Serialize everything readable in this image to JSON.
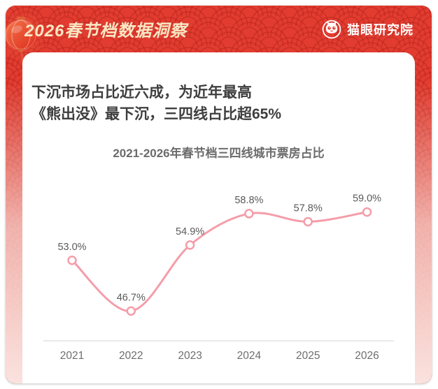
{
  "header": {
    "title": "2026春节档数据洞察",
    "logo": {
      "text": "猫眼研究院",
      "icon": "maoyan-cat-icon"
    }
  },
  "headline": {
    "line1": "下沉市场占比近六成，为近年最高",
    "line2": "《熊出没》最下沉，三四线占比超65%"
  },
  "chart_data": {
    "type": "line",
    "title": "2021-2026年春节档三四线城市票房占比",
    "categories": [
      "2021",
      "2022",
      "2023",
      "2024",
      "2025",
      "2026"
    ],
    "values": [
      53.0,
      46.7,
      54.9,
      58.8,
      57.8,
      59.0
    ],
    "value_labels": [
      "53.0%",
      "46.7%",
      "54.9%",
      "58.8%",
      "57.8%",
      "59.0%"
    ],
    "ylim": [
      43,
      64
    ],
    "grid": false,
    "legend": "none",
    "line_color": "#F49DA9",
    "marker": "open-circle"
  },
  "colors": {
    "background_red": "#E23C30",
    "background_fade_pink": "#F8DEDA",
    "header_title_text": "#F8E7C4",
    "logo_text": "#FFFFFF",
    "headline_text": "#3E3E3E",
    "chart_title_text": "#6B6B6B",
    "axis_line": "#E2E2E2",
    "axis_label_text": "#6E6E6E",
    "data_label_text": "#5A5A5A"
  }
}
